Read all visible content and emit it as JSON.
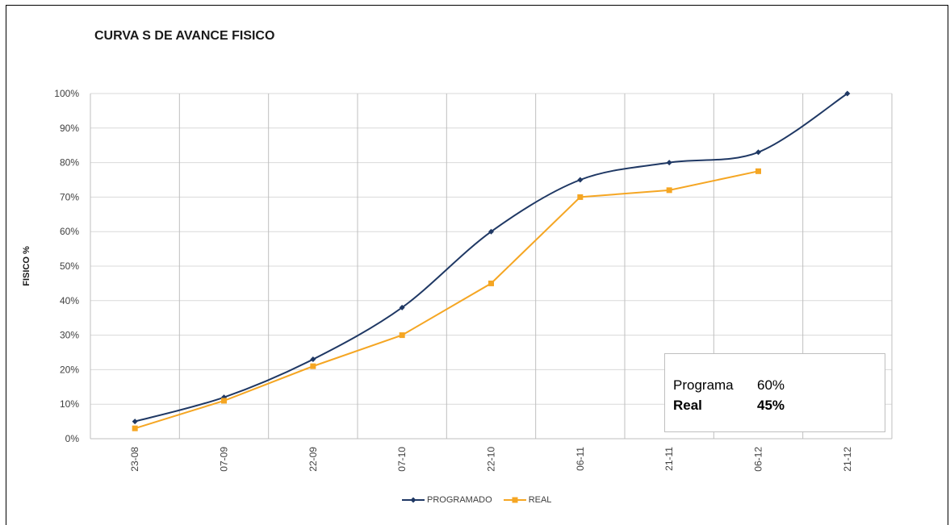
{
  "chart_data": {
    "type": "line",
    "title": "CURVA S DE AVANCE FISICO",
    "ylabel": "FISICO %",
    "xlabel": "",
    "categories": [
      "23-08",
      "07-09",
      "22-09",
      "07-10",
      "22-10",
      "06-11",
      "21-11",
      "06-12",
      "21-12"
    ],
    "ylim": [
      0,
      100
    ],
    "yticks": [
      "0%",
      "10%",
      "20%",
      "30%",
      "40%",
      "50%",
      "60%",
      "70%",
      "80%",
      "90%",
      "100%"
    ],
    "grid": true,
    "legend_position": "bottom",
    "series": [
      {
        "name": "PROGRAMADO",
        "color": "#1f3864",
        "marker": "diamond",
        "smooth": true,
        "values": [
          5,
          12,
          23,
          38,
          60,
          75,
          80,
          83,
          100
        ]
      },
      {
        "name": "REAL",
        "color": "#f5a623",
        "marker": "square",
        "smooth": false,
        "values": [
          3,
          11,
          21,
          30,
          45,
          70,
          72,
          77.5,
          null
        ]
      }
    ]
  },
  "summary": {
    "program_label": "Programa",
    "program_value": "60%",
    "real_label": "Real",
    "real_value": "45%"
  }
}
